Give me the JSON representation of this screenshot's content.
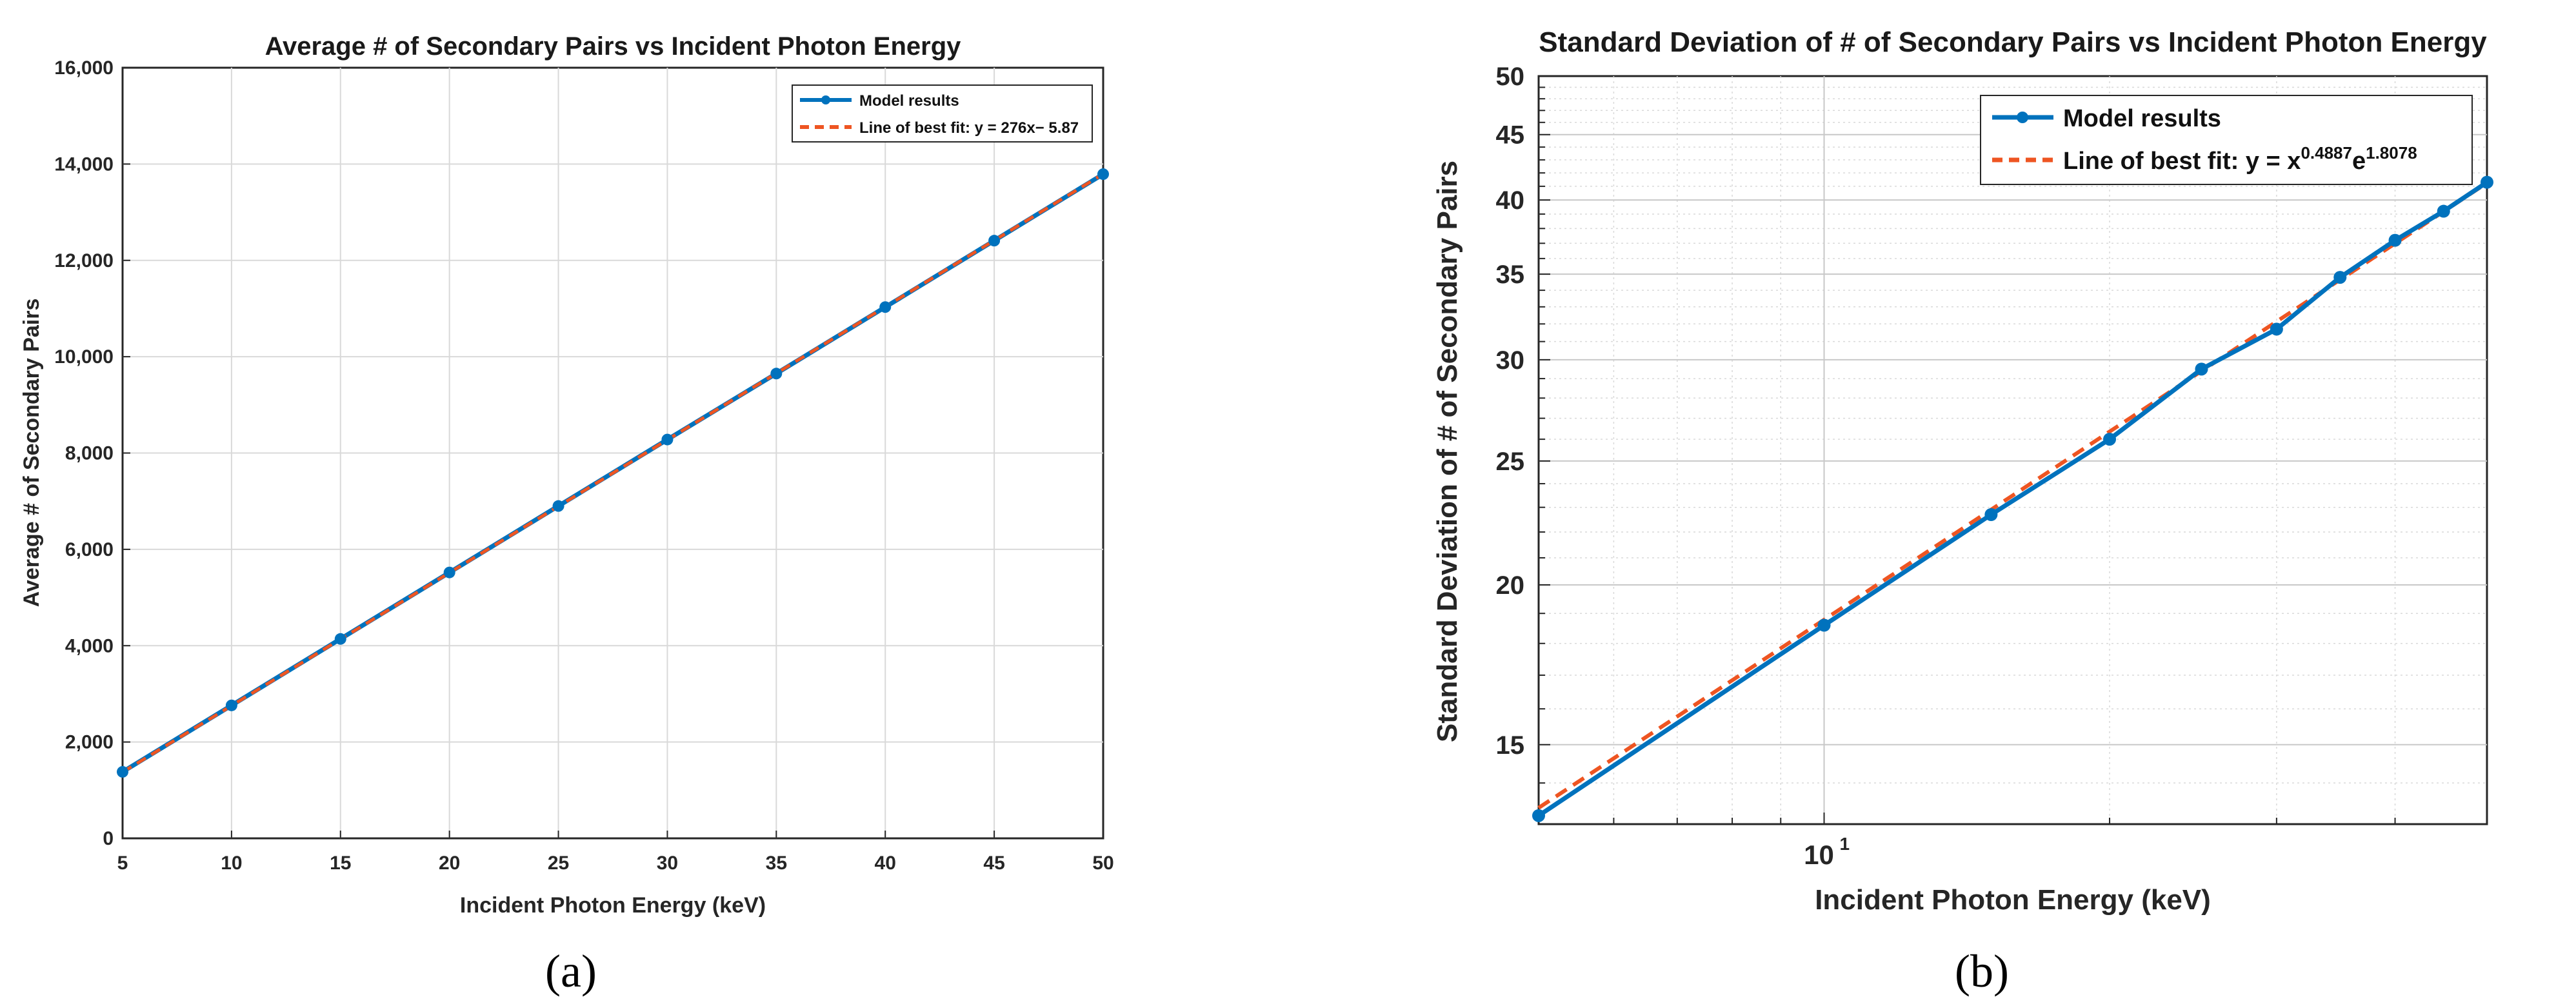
{
  "colors": {
    "model": "#0072BD",
    "fit": "#EE5522",
    "grid": "#d9d9d9",
    "axis": "#262626"
  },
  "panels": {
    "a": "(a)",
    "b": "(b)"
  },
  "chart_data": [
    {
      "type": "line",
      "title": "Average # of Secondary Pairs vs Incident Photon Energy",
      "xlabel": "Incident Photon Energy (keV)",
      "ylabel": "Average # of Secondary Pairs",
      "xlim": [
        5,
        50
      ],
      "ylim": [
        0,
        16000
      ],
      "xticks": [
        5,
        10,
        15,
        20,
        25,
        30,
        35,
        40,
        45,
        50
      ],
      "xtick_labels": [
        "5",
        "10",
        "15",
        "20",
        "25",
        "30",
        "35",
        "40",
        "45",
        "50"
      ],
      "yticks": [
        0,
        2000,
        4000,
        6000,
        8000,
        10000,
        12000,
        14000,
        16000
      ],
      "ytick_labels": [
        "0",
        "2,000",
        "4,000",
        "6,000",
        "8,000",
        "10,000",
        "12,000",
        "14,000",
        "16,000"
      ],
      "grid": true,
      "legend_position": "top-right",
      "series": [
        {
          "name": "Model results",
          "style": "solid-markers",
          "x": [
            5,
            10,
            15,
            20,
            25,
            30,
            35,
            40,
            45,
            50
          ],
          "y": [
            1380,
            2760,
            4140,
            5520,
            6900,
            8280,
            9650,
            11030,
            12410,
            13790
          ]
        },
        {
          "name": "Line of best fit: y = 276x− 5.87",
          "style": "dashed",
          "x": [
            5,
            50
          ],
          "y": [
            1374.13,
            13794.13
          ]
        }
      ]
    },
    {
      "type": "line",
      "scale": "log-log",
      "title": "Standard Deviation of # of Secondary Pairs vs Incident Photon Energy",
      "xlabel": "Incident Photon Energy (keV)",
      "ylabel": "Standard Deviation of # of Secondary Pairs",
      "xlim": [
        5,
        50
      ],
      "ylim": [
        13,
        50
      ],
      "xticks": [
        10
      ],
      "xtick_labels": [
        "10"
      ],
      "xtick_exponent_base": "10",
      "xtick_exponent": "1",
      "yticks": [
        15,
        20,
        25,
        30,
        35,
        40,
        45,
        50
      ],
      "ytick_labels": [
        "15",
        "20",
        "25",
        "30",
        "35",
        "40",
        "45",
        "50"
      ],
      "grid": true,
      "legend_position": "top-right",
      "series": [
        {
          "name": "Model results",
          "style": "solid-markers",
          "x": [
            5,
            10,
            15,
            20,
            25,
            30,
            35,
            40,
            45,
            50
          ],
          "y": [
            13.2,
            18.6,
            22.7,
            26.0,
            29.5,
            31.7,
            34.8,
            37.2,
            39.2,
            41.3
          ]
        },
        {
          "name_prefix": "Line of best fit: y = x",
          "name_exp1": "0.4887",
          "name_mid": "e",
          "name_exp2": "1.8078",
          "style": "dashed",
          "coef_a": 0.4887,
          "coef_b": 1.8078
        }
      ]
    }
  ]
}
